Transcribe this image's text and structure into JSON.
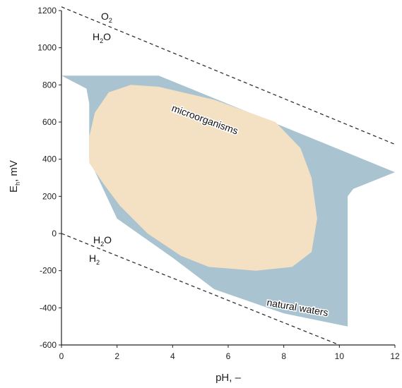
{
  "chart_data": {
    "type": "area",
    "xlabel": "pH, –",
    "ylabel_main": "E",
    "ylabel_sub": "h",
    "ylabel_rest": ", mV",
    "xlim": [
      0,
      12
    ],
    "ylim": [
      -600,
      1200
    ],
    "x_ticks": [
      0,
      2,
      4,
      6,
      8,
      10,
      12
    ],
    "y_ticks": [
      -600,
      -400,
      -200,
      0,
      200,
      400,
      600,
      800,
      1000,
      1200
    ],
    "colors": {
      "natural_waters": "#a9c3d1",
      "microorganisms": "#f4e0c2",
      "line": "#222222"
    },
    "lines": [
      {
        "name": "O2/H2O",
        "points": [
          [
            0,
            1220
          ],
          [
            12,
            480
          ]
        ]
      },
      {
        "name": "H2O/H2",
        "points": [
          [
            0,
            0
          ],
          [
            10,
            -600
          ]
        ]
      }
    ],
    "regions": [
      {
        "label": "natural waters",
        "points": [
          [
            0,
            850
          ],
          [
            3.5,
            850
          ],
          [
            12,
            330
          ],
          [
            10.5,
            240
          ],
          [
            10.3,
            200
          ],
          [
            10.3,
            -500
          ],
          [
            8,
            -430
          ],
          [
            5.5,
            -300
          ],
          [
            4,
            -130
          ],
          [
            2,
            80
          ],
          [
            1,
            400
          ],
          [
            1,
            700
          ],
          [
            0.9,
            780
          ],
          [
            0,
            850
          ]
        ]
      },
      {
        "label": "microorganisms",
        "points": [
          [
            1.2,
            650
          ],
          [
            1.7,
            760
          ],
          [
            2.5,
            800
          ],
          [
            3.5,
            790
          ],
          [
            5.5,
            720
          ],
          [
            7.7,
            600
          ],
          [
            8.6,
            460
          ],
          [
            9.0,
            300
          ],
          [
            9.2,
            80
          ],
          [
            9.0,
            -100
          ],
          [
            8.3,
            -180
          ],
          [
            7.0,
            -200
          ],
          [
            5.3,
            -180
          ],
          [
            4.3,
            -120
          ],
          [
            3.1,
            0
          ],
          [
            2.1,
            150
          ],
          [
            1.5,
            270
          ],
          [
            1.0,
            380
          ],
          [
            1.0,
            520
          ],
          [
            1.2,
            650
          ]
        ]
      }
    ],
    "annotations": {
      "o2_main": "O",
      "o2_sub": "2",
      "h2o_top_main": "H",
      "h2o_top_sub": "2",
      "h2o_top_rest": "O",
      "h2o_bot_main": "H",
      "h2o_bot_sub": "2",
      "h2o_bot_rest": "O",
      "h2_main": "H",
      "h2_sub": "2",
      "microorganisms": "microorganisms",
      "natural_waters": "natural waters"
    }
  }
}
